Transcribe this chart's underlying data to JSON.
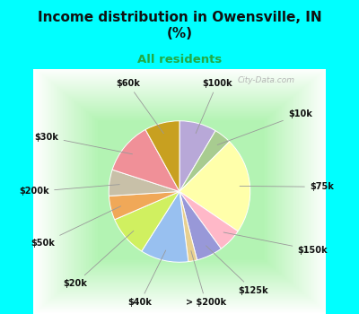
{
  "title": "Income distribution in Owensville, IN\n(%)",
  "subtitle": "All residents",
  "title_color": "#111111",
  "subtitle_color": "#22aa44",
  "background_top": "#00ffff",
  "labels": [
    "$100k",
    "$10k",
    "$75k",
    "$150k",
    "$125k",
    "> $200k",
    "$40k",
    "$20k",
    "$50k",
    "$200k",
    "$30k",
    "$60k"
  ],
  "values": [
    8.5,
    4.0,
    22.0,
    5.5,
    6.0,
    2.0,
    11.0,
    9.5,
    5.5,
    6.0,
    12.0,
    8.0
  ],
  "colors": [
    "#b8a8d8",
    "#a8cc90",
    "#ffffaa",
    "#ffb8c8",
    "#9898d8",
    "#e8d090",
    "#98c0f0",
    "#d0f060",
    "#f0a858",
    "#c8c0a8",
    "#f09098",
    "#c8a020"
  ],
  "startangle": 90,
  "label_fontsize": 7.0,
  "label_color": "#111111",
  "watermark": "City-Data.com"
}
